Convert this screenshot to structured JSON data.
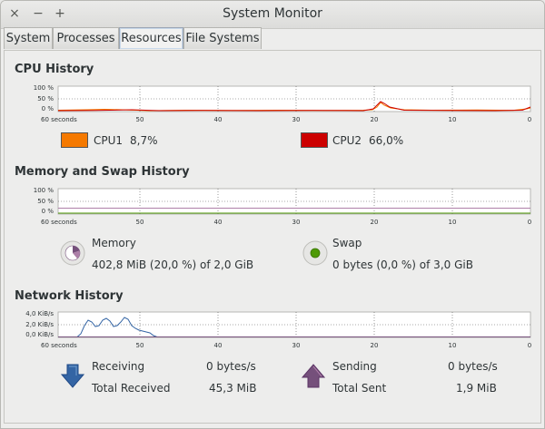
{
  "window": {
    "title": "System Monitor",
    "close_glyph": "×",
    "minimize_glyph": "−",
    "maximize_glyph": "+"
  },
  "tabs": [
    {
      "label": "System"
    },
    {
      "label": "Processes"
    },
    {
      "label": "Resources",
      "active": true
    },
    {
      "label": "File Systems"
    }
  ],
  "cpu": {
    "title": "CPU History",
    "y_ticks": [
      "100 %",
      "50 %",
      "0 %"
    ],
    "x_ticks": [
      "60 seconds",
      "50",
      "40",
      "30",
      "20",
      "10",
      "0"
    ],
    "cpus": [
      {
        "label": "CPU1",
        "value": "8,7%",
        "color": "#f57900"
      },
      {
        "label": "CPU2",
        "value": "66,0%",
        "color": "#cc0000"
      }
    ]
  },
  "memory": {
    "title": "Memory and Swap History",
    "y_ticks": [
      "100 %",
      "50 %",
      "0 %"
    ],
    "x_ticks": [
      "60 seconds",
      "50",
      "40",
      "30",
      "20",
      "10",
      "0"
    ],
    "memory_label": "Memory",
    "memory_value": "402,8 MiB (20,0 %) of 2,0 GiB",
    "swap_label": "Swap",
    "swap_value": "0 bytes (0,0 %) of 3,0 GiB",
    "memory_icon": "pie-icon",
    "swap_icon": "pie-icon",
    "memory_color": "#75507b",
    "swap_color": "#4e9a06"
  },
  "network": {
    "title": "Network History",
    "y_ticks": [
      "4,0 KiB/s",
      "2,0 KiB/s",
      "0,0 KiB/s"
    ],
    "x_ticks": [
      "60 seconds",
      "50",
      "40",
      "30",
      "20",
      "10",
      "0"
    ],
    "receiving_label": "Receiving",
    "receiving_value": "0 bytes/s",
    "total_received_label": "Total Received",
    "total_received_value": "45,3 MiB",
    "sending_label": "Sending",
    "sending_value": "0 bytes/s",
    "total_sent_label": "Total Sent",
    "total_sent_value": "1,9 MiB",
    "receiving_icon": "arrow-down-icon",
    "sending_icon": "arrow-up-icon",
    "receiving_color": "#3465a4",
    "sending_color": "#75507b"
  }
}
